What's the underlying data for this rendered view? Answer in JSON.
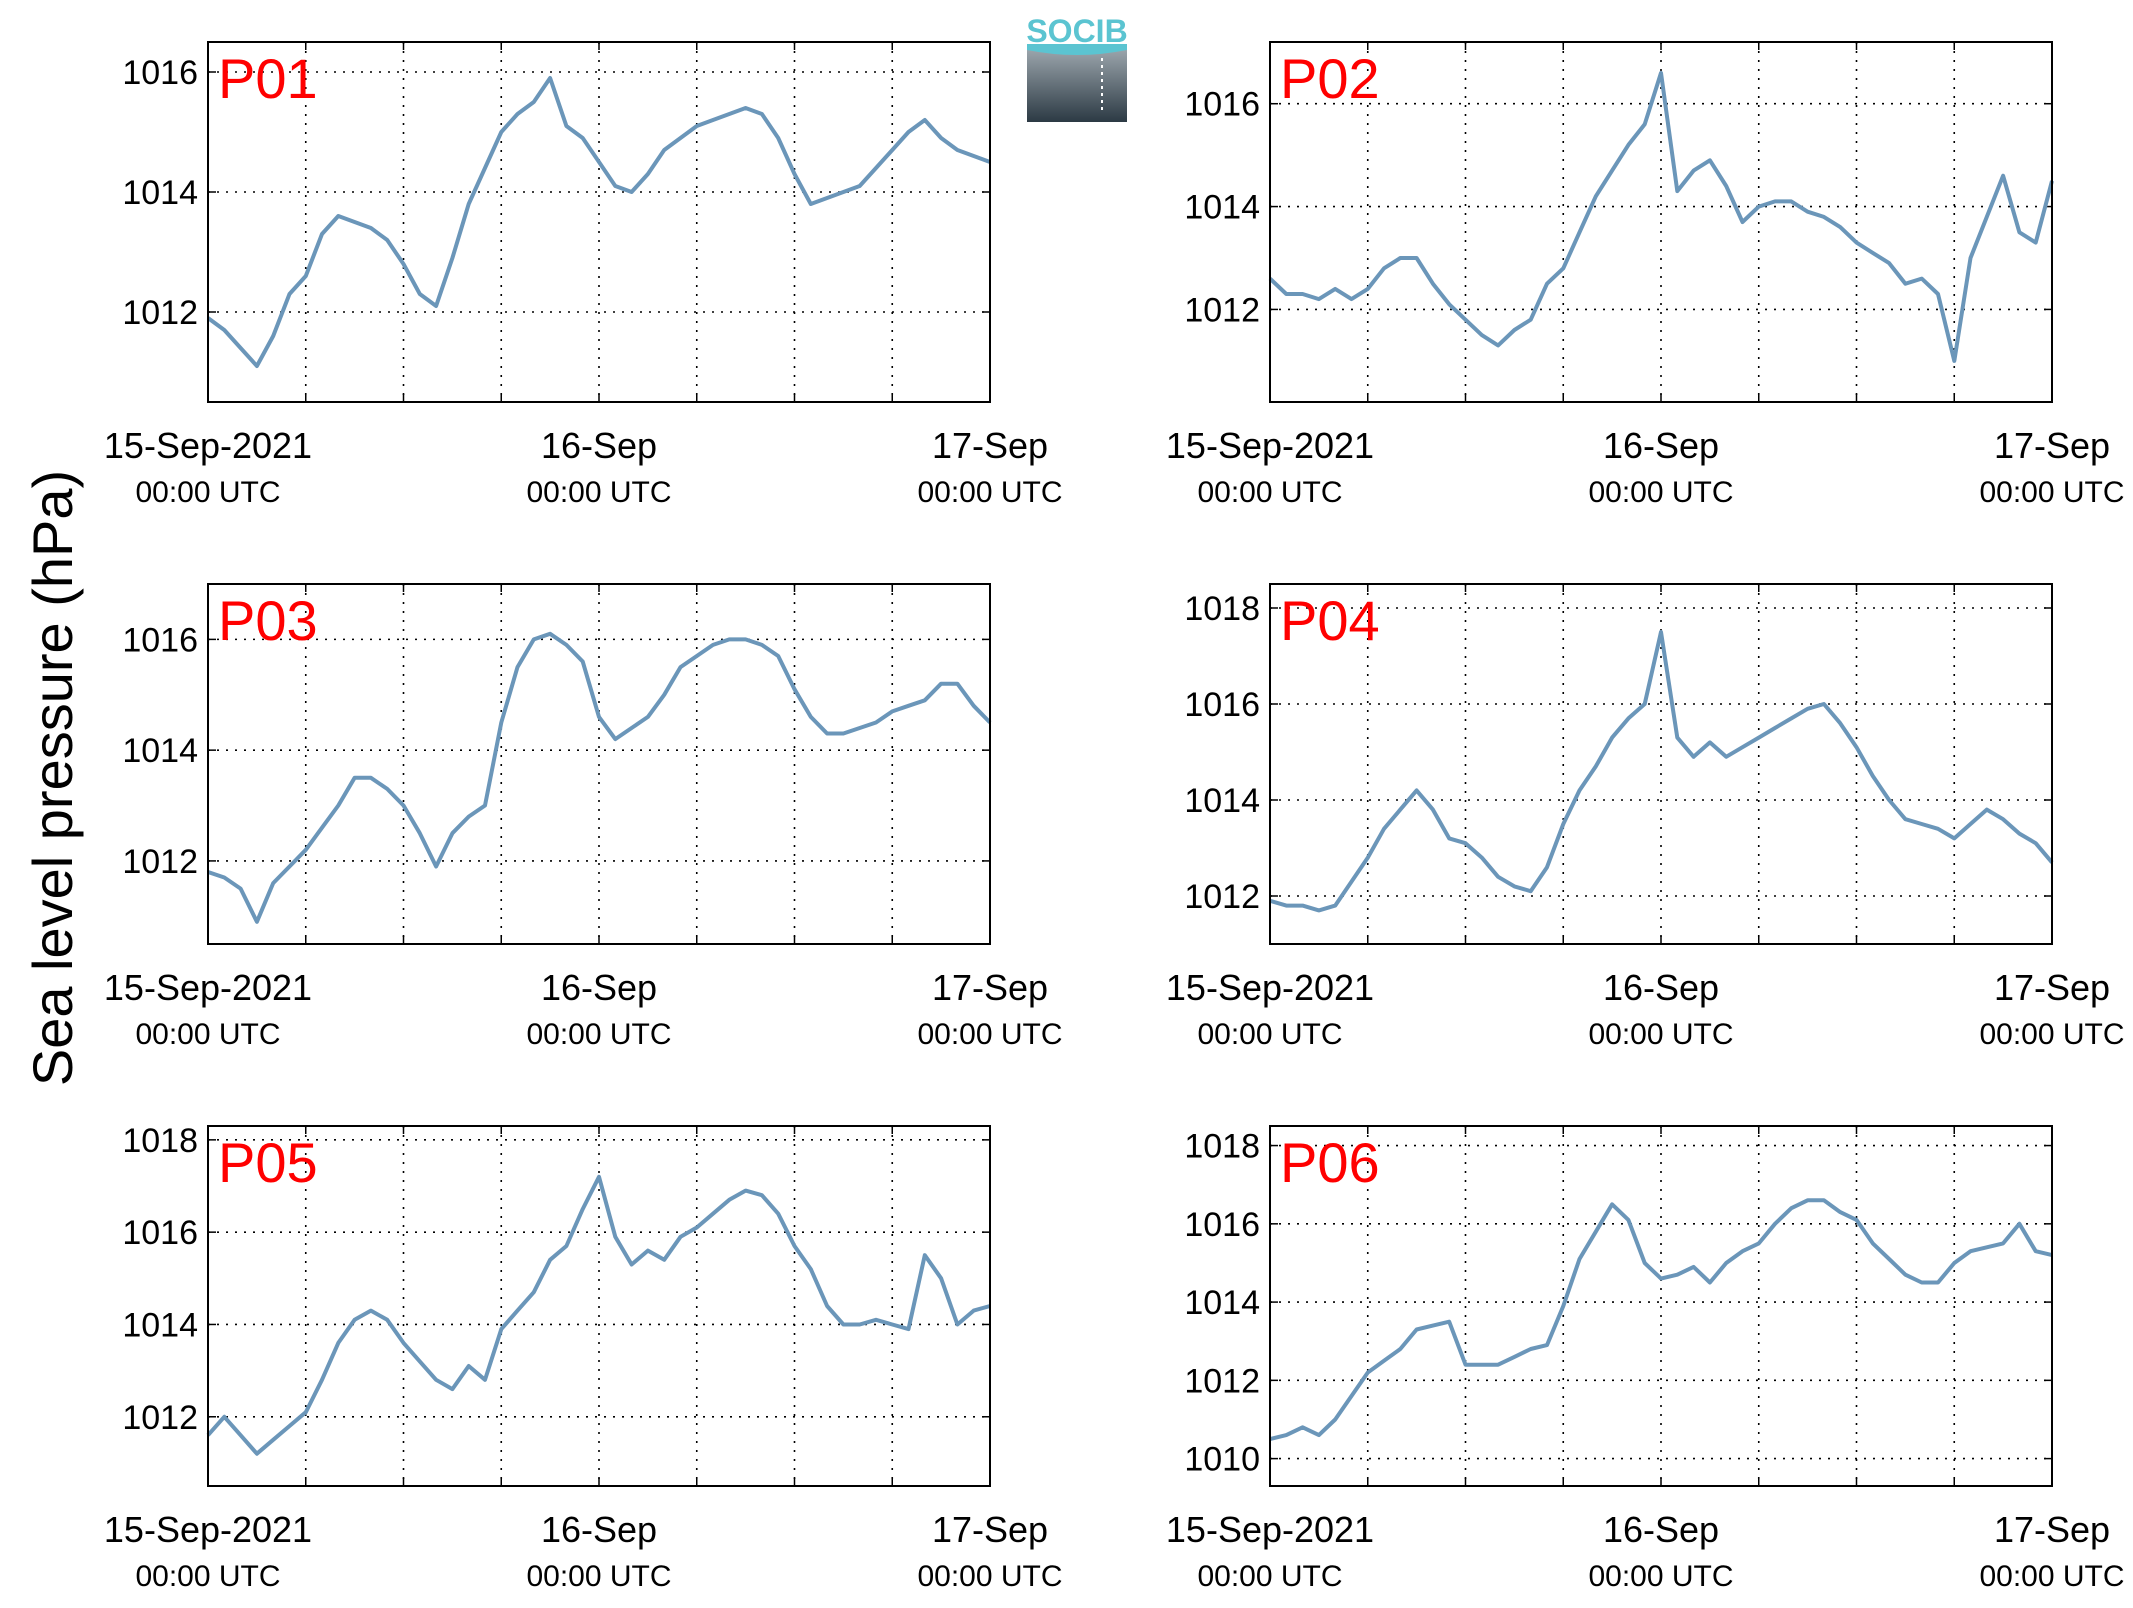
{
  "figure": {
    "ylabel": "Sea level pressure (hPa)",
    "logo_text": "SOCIB",
    "x_tick_labels": [
      {
        "date": "15-Sep-2021",
        "time": "00:00 UTC"
      },
      {
        "date": "16-Sep",
        "time": "00:00 UTC"
      },
      {
        "date": "17-Sep",
        "time": "00:00 UTC"
      }
    ],
    "colors": {
      "series": "#6b96b9",
      "panel_label": "#ff0000",
      "logo_top": "#5bc4d1",
      "logo_bottom": "#2c3a44"
    }
  },
  "chart_data": [
    {
      "type": "line",
      "panel": "P01",
      "grid": true,
      "xlabel": "",
      "ylabel": "Sea level pressure (hPa)",
      "xlim": [
        0,
        48
      ],
      "ylim": [
        1010.5,
        1016.5
      ],
      "yticks": [
        1012,
        1014,
        1016
      ],
      "x": [
        0,
        1,
        2,
        3,
        4,
        5,
        6,
        7,
        8,
        9,
        10,
        11,
        12,
        13,
        14,
        15,
        16,
        17,
        18,
        19,
        20,
        21,
        22,
        23,
        24,
        25,
        26,
        27,
        28,
        29,
        30,
        31,
        32,
        33,
        34,
        35,
        36,
        37,
        38,
        39,
        40,
        41,
        42,
        43,
        44,
        45,
        46,
        47,
        48
      ],
      "series": [
        {
          "values": [
            1011.9,
            1011.7,
            1011.4,
            1011.1,
            1011.6,
            1012.3,
            1012.6,
            1013.3,
            1013.6,
            1013.5,
            1013.4,
            1013.2,
            1012.8,
            1012.3,
            1012.1,
            1012.9,
            1013.8,
            1014.4,
            1015.0,
            1015.3,
            1015.5,
            1015.9,
            1015.1,
            1014.9,
            1014.5,
            1014.1,
            1014.0,
            1014.3,
            1014.7,
            1014.9,
            1015.1,
            1015.2,
            1015.3,
            1015.4,
            1015.3,
            1014.9,
            1014.3,
            1013.8,
            1013.9,
            1014.0,
            1014.1,
            1014.4,
            1014.7,
            1015.0,
            1015.2,
            1014.9,
            1014.7,
            1014.6,
            1014.5
          ]
        }
      ]
    },
    {
      "type": "line",
      "panel": "P02",
      "grid": true,
      "xlabel": "",
      "ylabel": "Sea level pressure (hPa)",
      "xlim": [
        0,
        48
      ],
      "ylim": [
        1010.2,
        1017.2
      ],
      "yticks": [
        1012,
        1014,
        1016
      ],
      "x": [
        0,
        1,
        2,
        3,
        4,
        5,
        6,
        7,
        8,
        9,
        10,
        11,
        12,
        13,
        14,
        15,
        16,
        17,
        18,
        19,
        20,
        21,
        22,
        23,
        24,
        25,
        26,
        27,
        28,
        29,
        30,
        31,
        32,
        33,
        34,
        35,
        36,
        37,
        38,
        39,
        40,
        41,
        42,
        43,
        44,
        45,
        46,
        47,
        48
      ],
      "series": [
        {
          "values": [
            1012.6,
            1012.3,
            1012.3,
            1012.2,
            1012.4,
            1012.2,
            1012.4,
            1012.8,
            1013.0,
            1013.0,
            1012.5,
            1012.1,
            1011.8,
            1011.5,
            1011.3,
            1011.6,
            1011.8,
            1012.5,
            1012.8,
            1013.5,
            1014.2,
            1014.7,
            1015.2,
            1015.6,
            1016.6,
            1014.3,
            1014.7,
            1014.9,
            1014.4,
            1013.7,
            1014.0,
            1014.1,
            1014.1,
            1013.9,
            1013.8,
            1013.6,
            1013.3,
            1013.1,
            1012.9,
            1012.5,
            1012.6,
            1012.3,
            1011.0,
            1013.0,
            1013.8,
            1014.6,
            1013.5,
            1013.3,
            1014.5
          ]
        }
      ]
    },
    {
      "type": "line",
      "panel": "P03",
      "grid": true,
      "xlabel": "",
      "ylabel": "Sea level pressure (hPa)",
      "xlim": [
        0,
        48
      ],
      "ylim": [
        1010.5,
        1017
      ],
      "yticks": [
        1012,
        1014,
        1016
      ],
      "x": [
        0,
        1,
        2,
        3,
        4,
        5,
        6,
        7,
        8,
        9,
        10,
        11,
        12,
        13,
        14,
        15,
        16,
        17,
        18,
        19,
        20,
        21,
        22,
        23,
        24,
        25,
        26,
        27,
        28,
        29,
        30,
        31,
        32,
        33,
        34,
        35,
        36,
        37,
        38,
        39,
        40,
        41,
        42,
        43,
        44,
        45,
        46,
        47,
        48
      ],
      "series": [
        {
          "values": [
            1011.8,
            1011.7,
            1011.5,
            1010.9,
            1011.6,
            1011.9,
            1012.2,
            1012.6,
            1013.0,
            1013.5,
            1013.5,
            1013.3,
            1013.0,
            1012.5,
            1011.9,
            1012.5,
            1012.8,
            1013.0,
            1014.5,
            1015.5,
            1016.0,
            1016.1,
            1015.9,
            1015.6,
            1014.6,
            1014.2,
            1014.4,
            1014.6,
            1015.0,
            1015.5,
            1015.7,
            1015.9,
            1016.0,
            1016.0,
            1015.9,
            1015.7,
            1015.1,
            1014.6,
            1014.3,
            1014.3,
            1014.4,
            1014.5,
            1014.7,
            1014.8,
            1014.9,
            1015.2,
            1015.2,
            1014.8,
            1014.5
          ]
        }
      ]
    },
    {
      "type": "line",
      "panel": "P04",
      "grid": true,
      "xlabel": "",
      "ylabel": "Sea level pressure (hPa)",
      "xlim": [
        0,
        48
      ],
      "ylim": [
        1011,
        1018.5
      ],
      "yticks": [
        1012,
        1014,
        1016,
        1018
      ],
      "x": [
        0,
        1,
        2,
        3,
        4,
        5,
        6,
        7,
        8,
        9,
        10,
        11,
        12,
        13,
        14,
        15,
        16,
        17,
        18,
        19,
        20,
        21,
        22,
        23,
        24,
        25,
        26,
        27,
        28,
        29,
        30,
        31,
        32,
        33,
        34,
        35,
        36,
        37,
        38,
        39,
        40,
        41,
        42,
        43,
        44,
        45,
        46,
        47,
        48
      ],
      "series": [
        {
          "values": [
            1011.9,
            1011.8,
            1011.8,
            1011.7,
            1011.8,
            1012.3,
            1012.8,
            1013.4,
            1013.8,
            1014.2,
            1013.8,
            1013.2,
            1013.1,
            1012.8,
            1012.4,
            1012.2,
            1012.1,
            1012.6,
            1013.5,
            1014.2,
            1014.7,
            1015.3,
            1015.7,
            1016.0,
            1017.5,
            1015.3,
            1014.9,
            1015.2,
            1014.9,
            1015.1,
            1015.3,
            1015.5,
            1015.7,
            1015.9,
            1016.0,
            1015.6,
            1015.1,
            1014.5,
            1014.0,
            1013.6,
            1013.5,
            1013.4,
            1013.2,
            1013.5,
            1013.8,
            1013.6,
            1013.3,
            1013.1,
            1012.7
          ]
        }
      ]
    },
    {
      "type": "line",
      "panel": "P05",
      "grid": true,
      "xlabel": "",
      "ylabel": "Sea level pressure (hPa)",
      "xlim": [
        0,
        48
      ],
      "ylim": [
        1010.5,
        1018.3
      ],
      "yticks": [
        1012,
        1014,
        1016,
        1018
      ],
      "x": [
        0,
        1,
        2,
        3,
        4,
        5,
        6,
        7,
        8,
        9,
        10,
        11,
        12,
        13,
        14,
        15,
        16,
        17,
        18,
        19,
        20,
        21,
        22,
        23,
        24,
        25,
        26,
        27,
        28,
        29,
        30,
        31,
        32,
        33,
        34,
        35,
        36,
        37,
        38,
        39,
        40,
        41,
        42,
        43,
        44,
        45,
        46,
        47,
        48
      ],
      "series": [
        {
          "values": [
            1011.6,
            1012.0,
            1011.6,
            1011.2,
            1011.5,
            1011.8,
            1012.1,
            1012.8,
            1013.6,
            1014.1,
            1014.3,
            1014.1,
            1013.6,
            1013.2,
            1012.8,
            1012.6,
            1013.1,
            1012.8,
            1013.9,
            1014.3,
            1014.7,
            1015.4,
            1015.7,
            1016.5,
            1017.2,
            1015.9,
            1015.3,
            1015.6,
            1015.4,
            1015.9,
            1016.1,
            1016.4,
            1016.7,
            1016.9,
            1016.8,
            1016.4,
            1015.7,
            1015.2,
            1014.4,
            1014.0,
            1014.0,
            1014.1,
            1014.0,
            1013.9,
            1015.5,
            1015.0,
            1014.0,
            1014.3,
            1014.4
          ]
        }
      ]
    },
    {
      "type": "line",
      "panel": "P06",
      "grid": true,
      "xlabel": "",
      "ylabel": "Sea level pressure (hPa)",
      "xlim": [
        0,
        48
      ],
      "ylim": [
        1009.3,
        1018.5
      ],
      "yticks": [
        1010,
        1012,
        1014,
        1016,
        1018
      ],
      "x": [
        0,
        1,
        2,
        3,
        4,
        5,
        6,
        7,
        8,
        9,
        10,
        11,
        12,
        13,
        14,
        15,
        16,
        17,
        18,
        19,
        20,
        21,
        22,
        23,
        24,
        25,
        26,
        27,
        28,
        29,
        30,
        31,
        32,
        33,
        34,
        35,
        36,
        37,
        38,
        39,
        40,
        41,
        42,
        43,
        44,
        45,
        46,
        47,
        48
      ],
      "series": [
        {
          "values": [
            1010.5,
            1010.6,
            1010.8,
            1010.6,
            1011.0,
            1011.6,
            1012.2,
            1012.5,
            1012.8,
            1013.3,
            1013.4,
            1013.5,
            1012.4,
            1012.4,
            1012.4,
            1012.6,
            1012.8,
            1012.9,
            1013.9,
            1015.1,
            1015.8,
            1016.5,
            1016.1,
            1015.0,
            1014.6,
            1014.7,
            1014.9,
            1014.5,
            1015.0,
            1015.3,
            1015.5,
            1016.0,
            1016.4,
            1016.6,
            1016.6,
            1016.3,
            1016.1,
            1015.5,
            1015.1,
            1014.7,
            1014.5,
            1014.5,
            1015.0,
            1015.3,
            1015.4,
            1015.5,
            1016.0,
            1015.3,
            1015.2
          ]
        }
      ]
    }
  ]
}
